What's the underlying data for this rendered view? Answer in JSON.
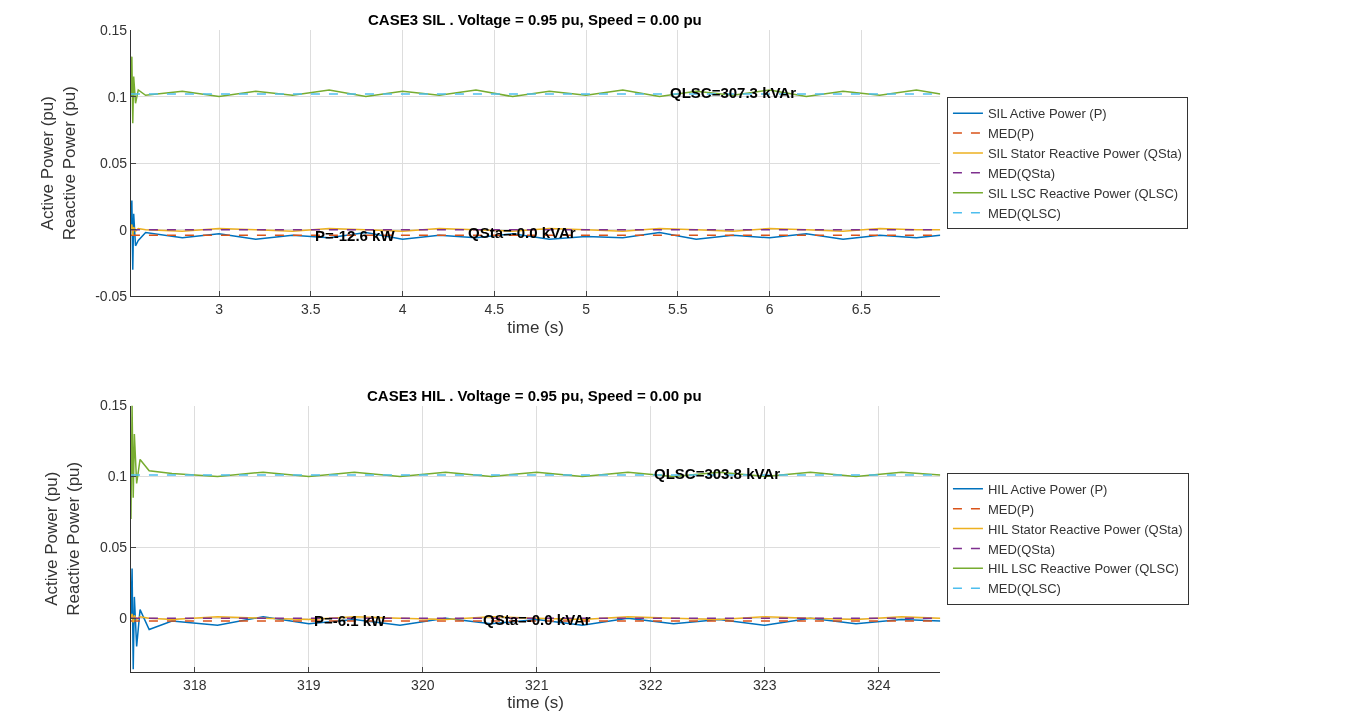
{
  "chart_data": [
    {
      "type": "line",
      "title": "CASE3 SIL . Voltage = 0.95 pu, Speed = 0.00 pu",
      "xlabel": "time (s)",
      "ylabel": "Active Power (pu)\nReactive Power (pu)",
      "x": [
        2.52,
        2.525,
        2.53,
        2.535,
        2.545,
        2.56,
        2.6,
        2.8,
        3.0,
        3.2,
        3.4,
        3.6,
        3.8,
        4.0,
        4.2,
        4.4,
        4.6,
        4.8,
        5.0,
        5.2,
        5.4,
        5.6,
        5.8,
        6.0,
        6.2,
        6.4,
        6.6,
        6.8,
        6.93
      ],
      "series": [
        {
          "name": "SIL Active Power (P)",
          "color": "#0072bd",
          "line_style": "solid",
          "values": [
            0.0,
            0.022,
            -0.03,
            0.012,
            -0.012,
            -0.008,
            -0.002,
            -0.006,
            -0.003,
            -0.007,
            -0.004,
            -0.006,
            -0.002,
            -0.007,
            -0.004,
            -0.006,
            -0.003,
            -0.007,
            -0.005,
            -0.006,
            -0.002,
            -0.007,
            -0.004,
            -0.006,
            -0.003,
            -0.007,
            -0.004,
            -0.006,
            -0.004
          ]
        },
        {
          "name": "MED(P)",
          "color": "#d95319",
          "line_style": "dashed",
          "x": [
            2.52,
            6.93
          ],
          "values": [
            -0.004,
            -0.004
          ]
        },
        {
          "name": "SIL Stator Reactive Power (QSta)",
          "color": "#edb120",
          "line_style": "solid",
          "values": [
            0.0,
            0.004,
            -0.004,
            0.002,
            -0.001,
            0.001,
            0.0,
            -0.001,
            0.001,
            0.0,
            -0.001,
            0.001,
            0.0,
            -0.001,
            0.001,
            0.0,
            -0.001,
            0.001,
            0.0,
            -0.001,
            0.001,
            0.0,
            -0.001,
            0.001,
            0.0,
            -0.001,
            0.001,
            0.0,
            0.0
          ]
        },
        {
          "name": "MED(QSta)",
          "color": "#7e2f8e",
          "line_style": "dashed",
          "x": [
            2.52,
            6.93
          ],
          "values": [
            0.0,
            0.0
          ]
        },
        {
          "name": "SIL LSC Reactive Power (QLSC)",
          "color": "#77ac30",
          "line_style": "solid",
          "values": [
            0.1,
            0.13,
            0.08,
            0.115,
            0.095,
            0.105,
            0.101,
            0.104,
            0.1,
            0.104,
            0.101,
            0.105,
            0.1,
            0.104,
            0.101,
            0.105,
            0.1,
            0.104,
            0.101,
            0.105,
            0.1,
            0.104,
            0.101,
            0.105,
            0.1,
            0.104,
            0.101,
            0.105,
            0.102
          ]
        },
        {
          "name": "MED(QLSC)",
          "color": "#4dbeee",
          "line_style": "dashed",
          "x": [
            2.52,
            6.93
          ],
          "values": [
            0.102,
            0.102
          ]
        }
      ],
      "annotations": [
        {
          "text": "QLSC=307.3 kVAr",
          "x": 5.8,
          "y": 0.103
        },
        {
          "text": "P=-12.6 kW",
          "x": 3.74,
          "y": -0.004
        },
        {
          "text": "QSta=-0.0 kVAr",
          "x": 4.65,
          "y": -0.002
        }
      ],
      "xlim": [
        2.52,
        6.93
      ],
      "xticks": [
        3,
        3.5,
        4,
        4.5,
        5,
        5.5,
        6,
        6.5
      ],
      "ylim": [
        -0.05,
        0.15
      ],
      "yticks": [
        -0.05,
        0,
        0.05,
        0.1,
        0.15
      ],
      "grid": true,
      "legend": "right",
      "marker": "none"
    },
    {
      "type": "line",
      "title": "CASE3 HIL . Voltage = 0.95 pu, Speed = 0.00 pu",
      "xlabel": "time (s)",
      "ylabel": "Active Power (pu)\nReactive Power (pu)",
      "x": [
        317.44,
        317.45,
        317.46,
        317.47,
        317.49,
        317.52,
        317.6,
        317.8,
        318.2,
        318.6,
        319.0,
        319.4,
        319.8,
        320.2,
        320.6,
        321.0,
        321.4,
        321.8,
        322.2,
        322.6,
        323.0,
        323.4,
        323.8,
        324.2,
        324.54
      ],
      "series": [
        {
          "name": "HIL Active Power (P)",
          "color": "#0072bd",
          "line_style": "solid",
          "values": [
            0.0,
            0.035,
            -0.036,
            0.015,
            -0.02,
            0.006,
            -0.008,
            -0.002,
            -0.005,
            0.001,
            -0.004,
            -0.001,
            -0.005,
            0.0,
            -0.004,
            -0.001,
            -0.005,
            0.0,
            -0.004,
            -0.001,
            -0.005,
            0.0,
            -0.004,
            -0.001,
            -0.002
          ]
        },
        {
          "name": "MED(P)",
          "color": "#d95319",
          "line_style": "dashed",
          "x": [
            317.44,
            324.54
          ],
          "values": [
            -0.002,
            -0.002
          ]
        },
        {
          "name": "HIL Stator Reactive Power (QSta)",
          "color": "#edb120",
          "line_style": "solid",
          "values": [
            0.0,
            0.003,
            -0.003,
            0.002,
            -0.001,
            0.001,
            0.0,
            -0.001,
            0.001,
            0.0,
            -0.001,
            0.001,
            0.0,
            -0.001,
            0.001,
            0.0,
            -0.001,
            0.001,
            0.0,
            -0.001,
            0.001,
            0.0,
            -0.001,
            0.001,
            0.0
          ]
        },
        {
          "name": "MED(QSta)",
          "color": "#7e2f8e",
          "line_style": "dashed",
          "x": [
            317.44,
            324.54
          ],
          "values": [
            0.0,
            0.0
          ]
        },
        {
          "name": "HIL LSC Reactive Power (QLSC)",
          "color": "#77ac30",
          "line_style": "solid",
          "values": [
            0.07,
            0.15,
            0.085,
            0.13,
            0.095,
            0.112,
            0.104,
            0.102,
            0.1,
            0.103,
            0.1,
            0.103,
            0.1,
            0.103,
            0.1,
            0.103,
            0.1,
            0.103,
            0.1,
            0.103,
            0.1,
            0.103,
            0.1,
            0.103,
            0.101
          ]
        },
        {
          "name": "MED(QLSC)",
          "color": "#4dbeee",
          "line_style": "dashed",
          "x": [
            317.44,
            324.54
          ],
          "values": [
            0.101,
            0.101
          ]
        }
      ],
      "annotations": [
        {
          "text": "QLSC=303.8 kVAr",
          "x": 322.58,
          "y": 0.102
        },
        {
          "text": "P=-6.1 kW",
          "x": 319.36,
          "y": -0.002
        },
        {
          "text": "QSta=-0.0 kVAr",
          "x": 321.0,
          "y": -0.001
        }
      ],
      "xlim": [
        317.44,
        324.54
      ],
      "xticks": [
        318,
        319,
        320,
        321,
        322,
        323,
        324
      ],
      "ylim": [
        -0.038,
        0.15
      ],
      "yticks": [
        0,
        0.05,
        0.1,
        0.15
      ],
      "grid": true,
      "legend": "right",
      "marker": "none"
    }
  ]
}
